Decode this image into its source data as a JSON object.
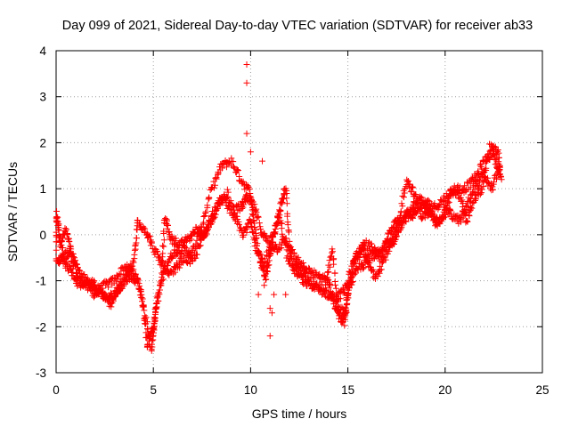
{
  "chart_data": {
    "type": "scatter",
    "title": "Day 099 of 2021, Sidereal Day-to-day VTEC variation (SDTVAR) for receiver ab33",
    "xlabel": "GPS time / hours",
    "ylabel": "SDTVAR / TECUs",
    "xlim": [
      0,
      25
    ],
    "ylim": [
      -3,
      4
    ],
    "xticks": [
      0,
      5,
      10,
      15,
      20,
      25
    ],
    "yticks": [
      -3,
      -2,
      -1,
      0,
      1,
      2,
      3,
      4
    ],
    "grid": true,
    "marker": "+",
    "marker_color": "#ff0000",
    "series": [
      {
        "name": "SDTVAR",
        "trace_points": [
          [
            0.0,
            -0.3
          ],
          [
            0.0,
            0.5
          ],
          [
            0.2,
            -0.2
          ],
          [
            0.5,
            0.1
          ],
          [
            0.8,
            -0.4
          ],
          [
            1.1,
            -0.9
          ],
          [
            1.5,
            -1.1
          ],
          [
            2.0,
            -1.3
          ],
          [
            2.5,
            -1.1
          ],
          [
            3.0,
            -1.0
          ],
          [
            3.5,
            -0.7
          ],
          [
            4.0,
            -0.8
          ],
          [
            4.4,
            -1.3
          ],
          [
            4.7,
            -2.4
          ],
          [
            5.0,
            -2.0
          ],
          [
            5.2,
            -1.4
          ],
          [
            5.6,
            -0.7
          ],
          [
            6.0,
            -0.4
          ],
          [
            6.5,
            -0.3
          ],
          [
            7.0,
            -0.4
          ],
          [
            7.5,
            0.2
          ],
          [
            8.0,
            1.0
          ],
          [
            8.5,
            1.5
          ],
          [
            9.0,
            1.6
          ],
          [
            9.5,
            1.2
          ],
          [
            10.0,
            0.9
          ],
          [
            10.2,
            0.2
          ],
          [
            10.5,
            -0.6
          ],
          [
            10.8,
            -0.9
          ],
          [
            11.0,
            -0.4
          ],
          [
            11.3,
            0.2
          ],
          [
            11.6,
            0.7
          ],
          [
            11.8,
            1.0
          ],
          [
            12.0,
            -0.3
          ],
          [
            12.5,
            -0.6
          ],
          [
            13.0,
            -0.8
          ],
          [
            13.5,
            -0.9
          ],
          [
            14.0,
            -1.0
          ],
          [
            14.3,
            -1.5
          ],
          [
            14.6,
            -1.8
          ],
          [
            14.8,
            -1.9
          ],
          [
            15.0,
            -1.3
          ],
          [
            15.3,
            -0.6
          ],
          [
            15.7,
            -0.3
          ],
          [
            16.0,
            -0.5
          ],
          [
            16.5,
            -0.4
          ],
          [
            17.0,
            -0.2
          ],
          [
            17.3,
            -0.2
          ],
          [
            17.6,
            0.1
          ],
          [
            18.0,
            0.5
          ],
          [
            18.2,
            0.4
          ],
          [
            18.5,
            0.5
          ],
          [
            19.0,
            0.7
          ],
          [
            19.5,
            0.6
          ],
          [
            20.0,
            0.8
          ],
          [
            20.5,
            1.0
          ],
          [
            21.0,
            1.0
          ],
          [
            21.5,
            1.2
          ],
          [
            22.0,
            1.6
          ],
          [
            22.5,
            1.8
          ],
          [
            22.8,
            1.3
          ]
        ],
        "trace_points_b": [
          [
            0.0,
            -0.6
          ],
          [
            0.3,
            -0.5
          ],
          [
            0.6,
            -0.4
          ],
          [
            1.0,
            -0.6
          ],
          [
            1.5,
            -1.0
          ],
          [
            2.0,
            -1.2
          ],
          [
            2.4,
            -1.3
          ],
          [
            2.8,
            -1.5
          ],
          [
            3.2,
            -1.2
          ],
          [
            3.6,
            -0.9
          ],
          [
            4.0,
            -0.6
          ],
          [
            4.2,
            0.3
          ],
          [
            4.6,
            0.1
          ],
          [
            5.0,
            -0.3
          ],
          [
            5.4,
            -0.6
          ],
          [
            5.8,
            -0.9
          ],
          [
            6.2,
            -0.7
          ],
          [
            6.6,
            -0.5
          ],
          [
            7.0,
            -0.6
          ],
          [
            7.4,
            -0.2
          ],
          [
            7.8,
            0.2
          ],
          [
            8.2,
            0.6
          ],
          [
            8.6,
            0.8
          ],
          [
            9.0,
            0.5
          ],
          [
            9.5,
            0.6
          ],
          [
            9.8,
            0.8
          ],
          [
            10.2,
            0.6
          ],
          [
            10.6,
            0.0
          ],
          [
            11.0,
            -0.2
          ],
          [
            11.4,
            -0.3
          ],
          [
            11.8,
            -0.1
          ],
          [
            12.2,
            -0.6
          ],
          [
            12.6,
            -0.8
          ],
          [
            13.0,
            -1.0
          ],
          [
            13.5,
            -1.2
          ],
          [
            14.0,
            -1.3
          ],
          [
            14.4,
            -1.4
          ],
          [
            14.8,
            -1.2
          ],
          [
            15.2,
            -1.0
          ],
          [
            15.6,
            -0.7
          ],
          [
            16.0,
            -0.6
          ],
          [
            16.4,
            -0.9
          ],
          [
            16.8,
            -0.6
          ],
          [
            17.2,
            -0.2
          ],
          [
            17.6,
            0.2
          ],
          [
            18.0,
            1.2
          ],
          [
            18.4,
            0.9
          ],
          [
            18.8,
            0.4
          ],
          [
            19.2,
            0.5
          ],
          [
            19.6,
            0.2
          ],
          [
            20.0,
            0.6
          ],
          [
            20.4,
            0.4
          ],
          [
            20.8,
            0.3
          ],
          [
            21.2,
            0.7
          ],
          [
            21.6,
            1.1
          ],
          [
            22.0,
            1.3
          ],
          [
            22.4,
            1.0
          ],
          [
            22.8,
            1.5
          ]
        ],
        "trace_points_c": [
          [
            0.1,
            0.3
          ],
          [
            0.4,
            -0.6
          ],
          [
            0.8,
            -0.8
          ],
          [
            1.2,
            -1.1
          ],
          [
            1.6,
            -1.0
          ],
          [
            2.0,
            -1.1
          ],
          [
            2.6,
            -1.4
          ],
          [
            3.0,
            -1.3
          ],
          [
            3.4,
            -1.1
          ],
          [
            3.8,
            -0.9
          ],
          [
            4.2,
            -1.0
          ],
          [
            4.6,
            -1.8
          ],
          [
            4.9,
            -2.5
          ],
          [
            5.1,
            -1.8
          ],
          [
            5.4,
            -1.0
          ],
          [
            5.6,
            0.4
          ],
          [
            5.9,
            -0.1
          ],
          [
            6.3,
            -0.2
          ],
          [
            6.8,
            -0.1
          ],
          [
            7.2,
            0.1
          ],
          [
            7.6,
            0.0
          ],
          [
            8.0,
            0.3
          ],
          [
            8.4,
            0.7
          ],
          [
            8.8,
            0.9
          ],
          [
            9.2,
            0.4
          ],
          [
            9.6,
            0.0
          ],
          [
            10.0,
            0.3
          ],
          [
            10.3,
            -0.3
          ],
          [
            10.7,
            -0.7
          ],
          [
            11.1,
            0.0
          ],
          [
            11.5,
            0.4
          ],
          [
            11.9,
            -0.5
          ],
          [
            12.3,
            -0.8
          ],
          [
            12.7,
            -1.0
          ],
          [
            13.2,
            -1.1
          ],
          [
            13.8,
            -1.2
          ],
          [
            14.2,
            -0.3
          ],
          [
            14.5,
            -1.6
          ],
          [
            14.9,
            -1.7
          ],
          [
            15.1,
            -0.8
          ],
          [
            15.5,
            -0.4
          ],
          [
            15.9,
            -0.2
          ],
          [
            16.3,
            -0.3
          ],
          [
            16.7,
            -0.5
          ],
          [
            17.1,
            0.0
          ],
          [
            17.5,
            0.3
          ],
          [
            17.9,
            0.3
          ],
          [
            18.3,
            0.6
          ],
          [
            18.7,
            0.8
          ],
          [
            19.1,
            0.6
          ],
          [
            19.5,
            0.3
          ],
          [
            19.9,
            0.3
          ],
          [
            20.3,
            0.9
          ],
          [
            20.7,
            0.9
          ],
          [
            21.1,
            0.3
          ],
          [
            21.5,
            0.8
          ],
          [
            21.9,
            1.0
          ],
          [
            22.3,
            1.9
          ],
          [
            22.7,
            1.8
          ],
          [
            22.9,
            1.2
          ]
        ],
        "outliers": [
          [
            9.8,
            3.7
          ],
          [
            9.8,
            3.3
          ],
          [
            9.8,
            2.2
          ],
          [
            10.0,
            1.8
          ],
          [
            10.6,
            1.6
          ],
          [
            10.4,
            -1.3
          ],
          [
            10.8,
            -0.8
          ],
          [
            11.0,
            -1.6
          ],
          [
            11.0,
            -2.2
          ],
          [
            11.1,
            -1.7
          ],
          [
            11.2,
            -1.3
          ],
          [
            11.8,
            -1.3
          ],
          [
            10.7,
            -1.1
          ]
        ]
      }
    ]
  }
}
